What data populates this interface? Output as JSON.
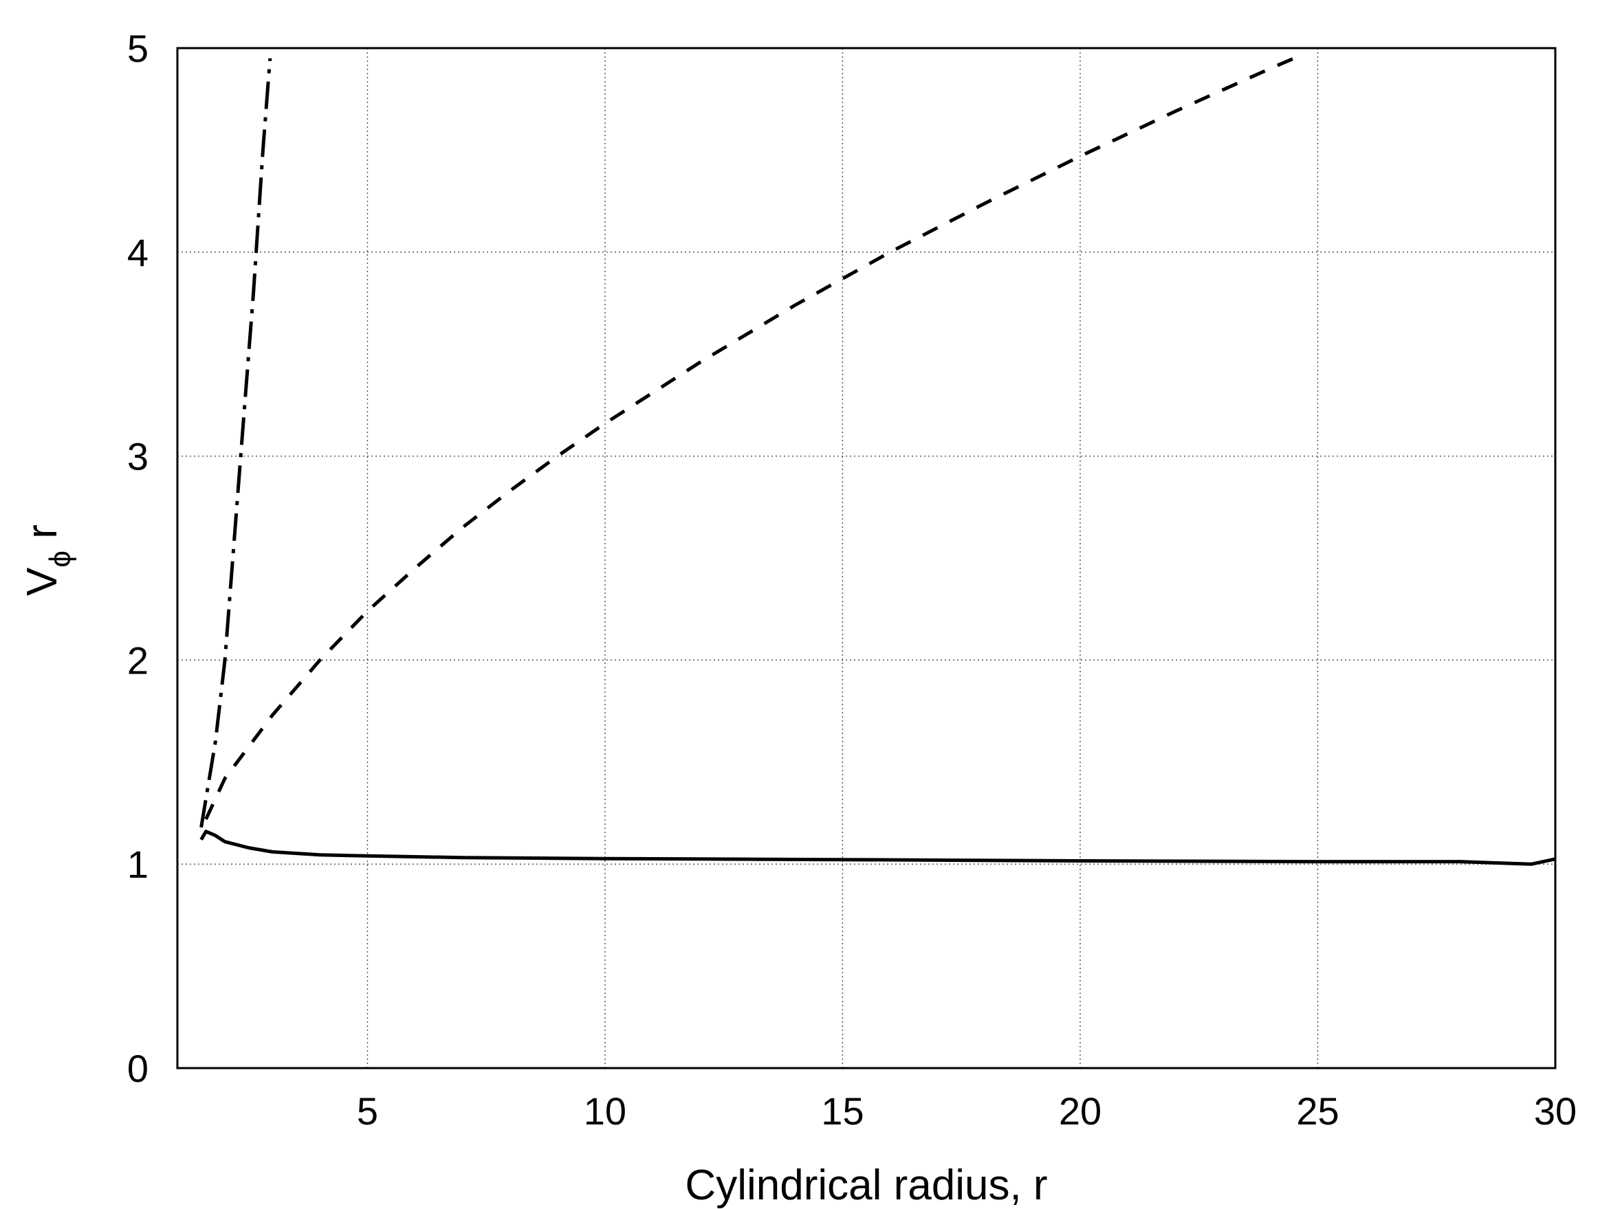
{
  "chart_data": {
    "type": "line",
    "title": "",
    "xlabel": "Cylindrical radius, r",
    "ylabel_main": "V",
    "ylabel_sub": "ϕ",
    "ylabel_tail": " r",
    "xlim": [
      1,
      30
    ],
    "ylim": [
      0,
      5
    ],
    "xticks": [
      5,
      10,
      15,
      20,
      25,
      30
    ],
    "yticks": [
      0,
      1,
      2,
      3,
      4,
      5
    ],
    "grid": true,
    "legend": "none",
    "series": [
      {
        "line_style": "dash-dot",
        "points": [
          [
            1.5,
            1.18
          ],
          [
            1.8,
            1.6
          ],
          [
            2.0,
            2.0
          ],
          [
            2.2,
            2.6
          ],
          [
            2.4,
            3.2
          ],
          [
            2.6,
            3.8
          ],
          [
            2.8,
            4.5
          ],
          [
            2.95,
            4.95
          ]
        ]
      },
      {
        "line_style": "dashed",
        "points": [
          [
            1.6,
            1.22
          ],
          [
            2,
            1.42
          ],
          [
            3,
            1.73
          ],
          [
            4,
            2.0
          ],
          [
            5,
            2.24
          ],
          [
            6,
            2.45
          ],
          [
            7,
            2.65
          ],
          [
            8,
            2.83
          ],
          [
            9,
            3.0
          ],
          [
            10,
            3.16
          ],
          [
            12,
            3.46
          ],
          [
            14,
            3.74
          ],
          [
            16,
            4.0
          ],
          [
            18,
            4.24
          ],
          [
            20,
            4.47
          ],
          [
            22,
            4.69
          ],
          [
            24,
            4.9
          ],
          [
            24.7,
            4.97
          ]
        ]
      },
      {
        "line_style": "solid",
        "points": [
          [
            1.5,
            1.12
          ],
          [
            1.6,
            1.16
          ],
          [
            1.8,
            1.14
          ],
          [
            2,
            1.11
          ],
          [
            2.5,
            1.08
          ],
          [
            3,
            1.06
          ],
          [
            4,
            1.045
          ],
          [
            5,
            1.04
          ],
          [
            7,
            1.032
          ],
          [
            10,
            1.027
          ],
          [
            15,
            1.022
          ],
          [
            20,
            1.016
          ],
          [
            25,
            1.012
          ],
          [
            28,
            1.012
          ],
          [
            29.5,
            1.0
          ],
          [
            30,
            1.025
          ]
        ]
      }
    ]
  }
}
